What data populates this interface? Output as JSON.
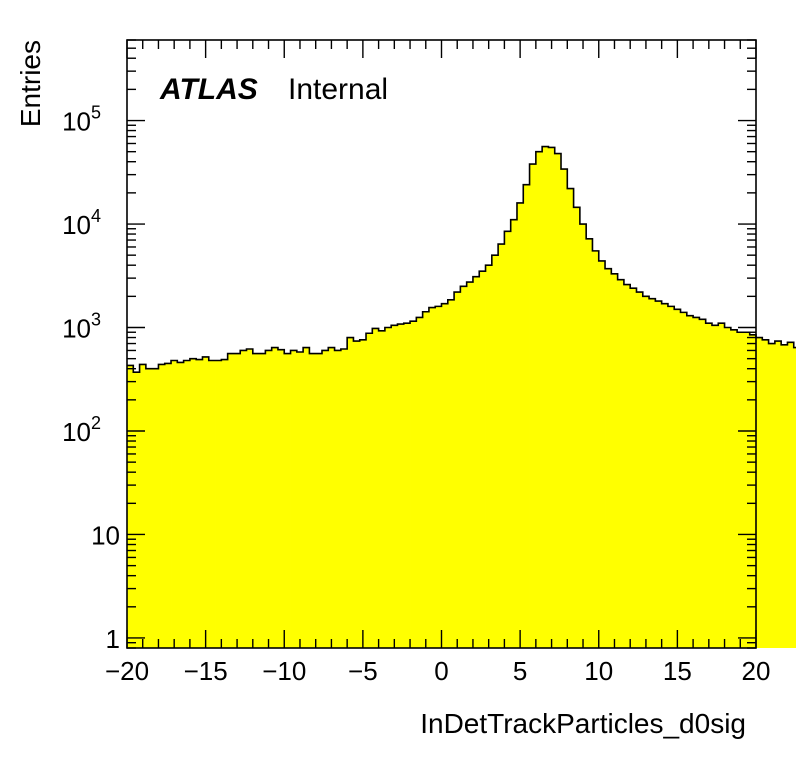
{
  "chart_data": {
    "type": "bar",
    "histogram": true,
    "xlabel": "InDetTrackParticles_d0sig",
    "ylabel": "Entries",
    "annotations": {
      "experiment": "ATLAS",
      "status": "Internal"
    },
    "xlim": [
      -20,
      20
    ],
    "ylim": [
      0.8,
      600000
    ],
    "yscale": "log",
    "grid": false,
    "fill_color": "#ffff00",
    "line_color": "#000000",
    "x_ticks": [
      {
        "value": -20,
        "label": "−20"
      },
      {
        "value": -15,
        "label": "−15"
      },
      {
        "value": -10,
        "label": "−10"
      },
      {
        "value": -5,
        "label": "−5"
      },
      {
        "value": 0,
        "label": "0"
      },
      {
        "value": 5,
        "label": "5"
      },
      {
        "value": 10,
        "label": "10"
      },
      {
        "value": 15,
        "label": "15"
      },
      {
        "value": 20,
        "label": "20"
      }
    ],
    "y_ticks": [
      {
        "value": 1,
        "base": "1",
        "exp": ""
      },
      {
        "value": 10,
        "base": "10",
        "exp": ""
      },
      {
        "value": 100,
        "base": "10",
        "exp": "2"
      },
      {
        "value": 1000,
        "base": "10",
        "exp": "3"
      },
      {
        "value": 10000,
        "base": "10",
        "exp": "4"
      },
      {
        "value": 100000,
        "base": "10",
        "exp": "5"
      }
    ],
    "bin_width": 0.4,
    "bin_edges_start": -20,
    "values": [
      430,
      370,
      440,
      400,
      400,
      440,
      450,
      480,
      460,
      480,
      500,
      490,
      520,
      480,
      480,
      490,
      560,
      560,
      600,
      620,
      560,
      560,
      600,
      640,
      610,
      560,
      600,
      580,
      640,
      560,
      560,
      600,
      640,
      600,
      620,
      800,
      740,
      760,
      880,
      980,
      930,
      1000,
      1050,
      1080,
      1100,
      1150,
      1250,
      1420,
      1560,
      1600,
      1700,
      1850,
      2200,
      2500,
      2750,
      3100,
      3500,
      4000,
      5000,
      6400,
      8500,
      11000,
      16000,
      24000,
      38000,
      50000,
      56000,
      55000,
      48000,
      34000,
      22000,
      14500,
      10000,
      7200,
      5500,
      4400,
      3700,
      3300,
      2900,
      2600,
      2400,
      2200,
      2000,
      1900,
      1800,
      1700,
      1600,
      1500,
      1400,
      1300,
      1250,
      1200,
      1100,
      1050,
      1100,
      1000,
      950,
      900,
      900,
      850,
      800,
      760,
      700,
      740,
      680,
      720,
      640,
      680,
      660,
      600,
      600,
      600,
      620,
      560,
      600,
      560,
      520,
      560,
      540,
      520,
      500,
      530,
      520,
      510,
      500,
      520,
      470,
      480,
      440,
      450,
      470,
      430,
      500,
      440,
      420,
      360,
      430,
      400,
      420,
      400,
      440,
      400,
      440,
      380,
      430,
      440,
      410,
      460,
      430,
      440,
      430,
      300,
      370,
      420,
      420,
      400,
      440,
      380,
      420,
      390
    ]
  }
}
